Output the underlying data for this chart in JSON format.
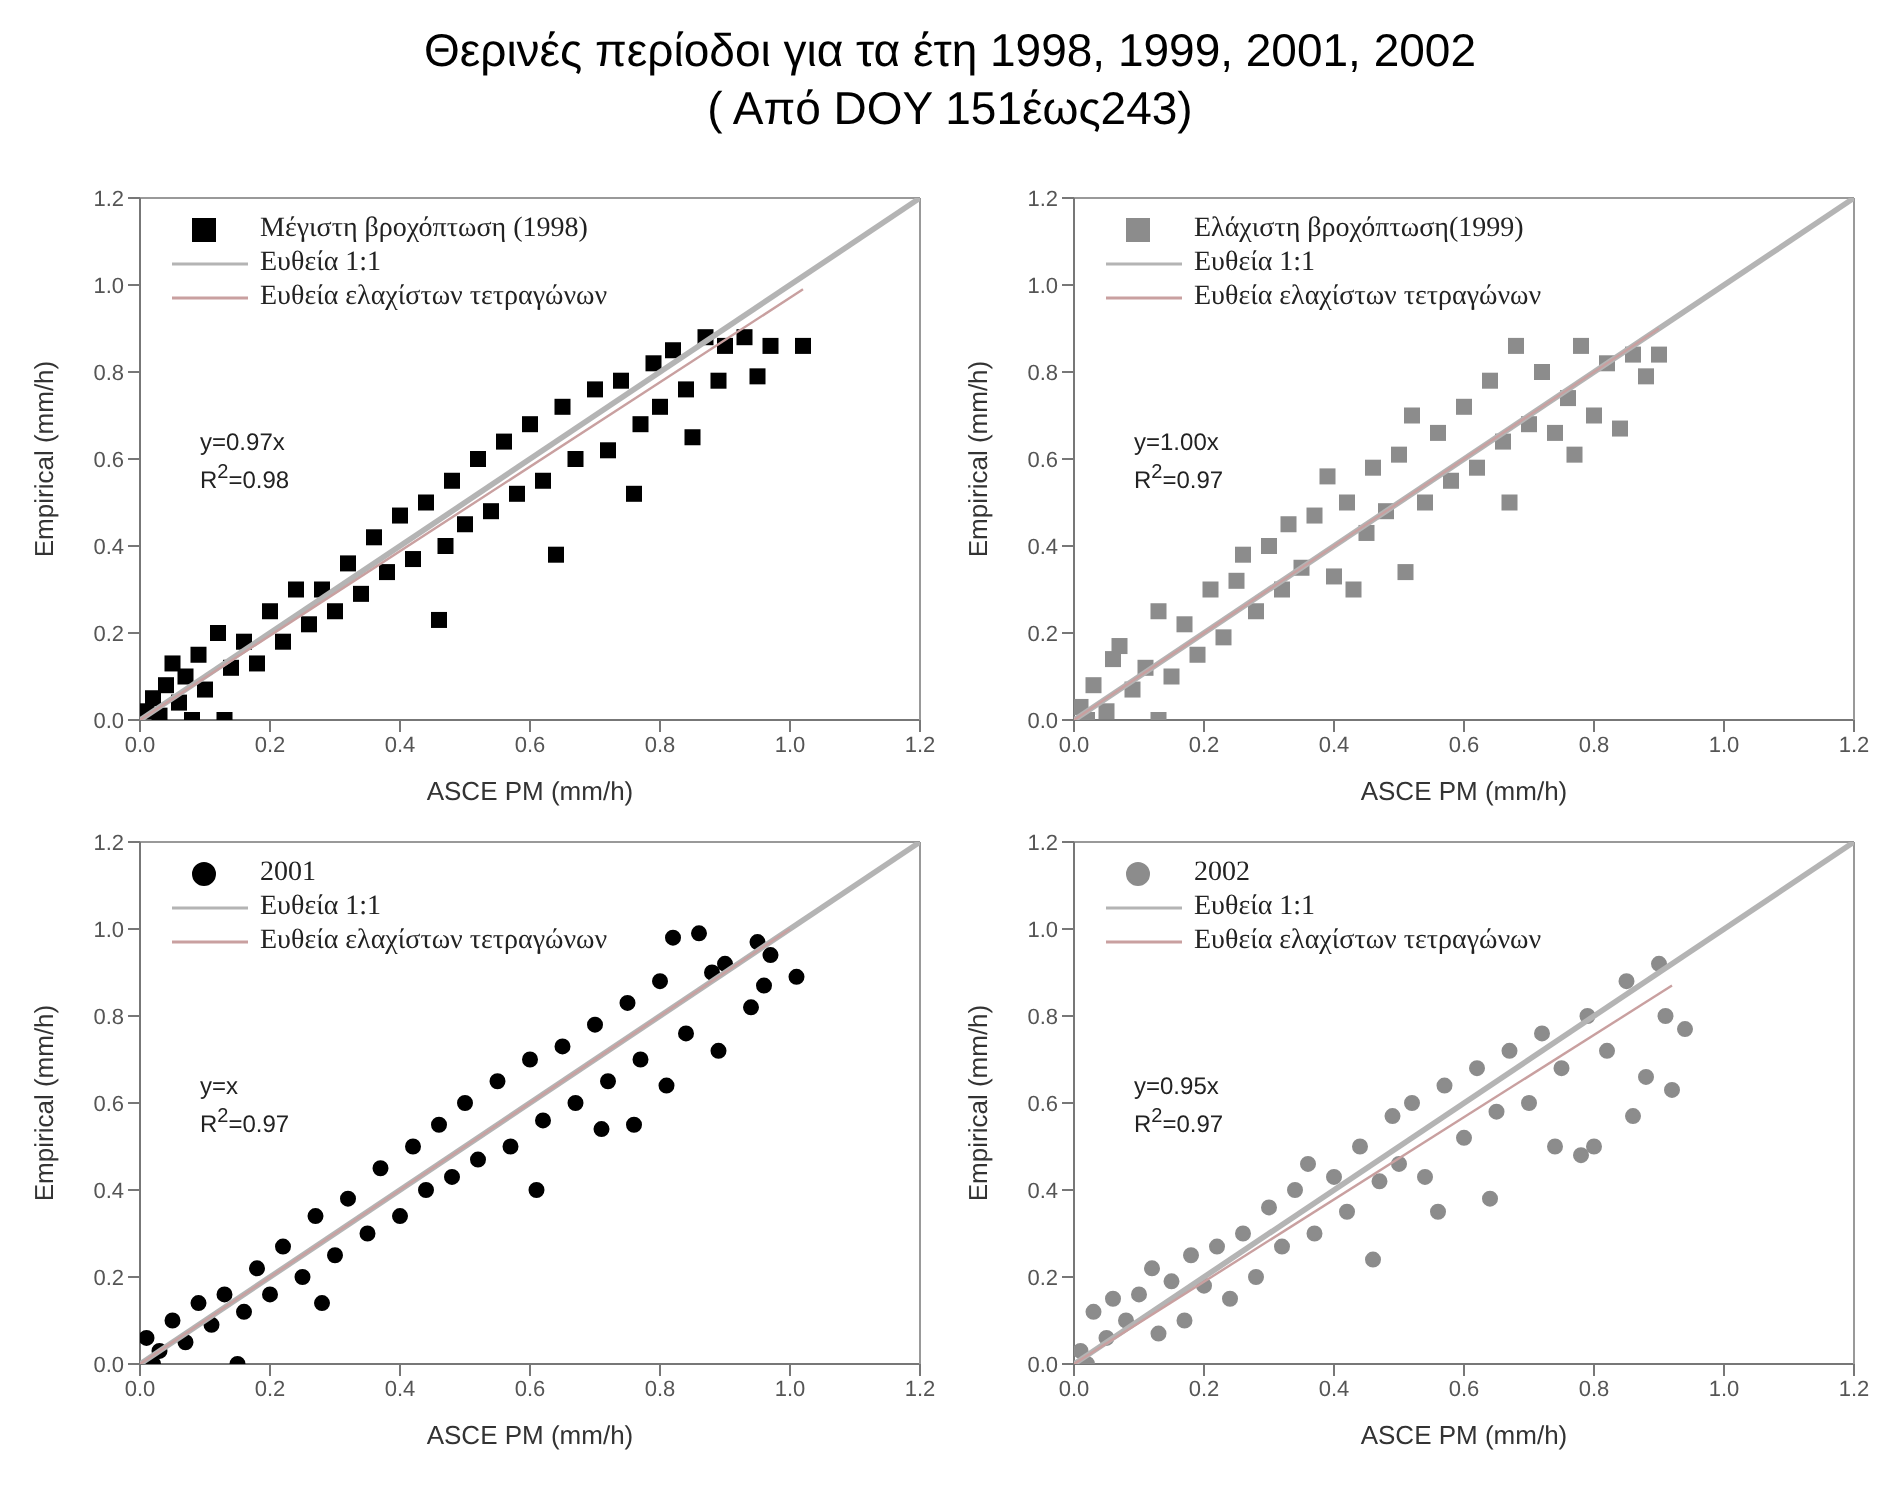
{
  "chart_data": [
    {
      "type": "scatter",
      "title": "Θερινές περίοδοι για τα έτη 1998, 1999, 2001, 2002",
      "subtitle": "( Από DOY 151έως243)",
      "xlabel": "ASCE PM (mm/h)",
      "ylabel": "Empirical (mm/h)",
      "xlim": [
        0,
        1.2
      ],
      "ylim": [
        0,
        1.2
      ],
      "xticks": [
        {
          "value": 0,
          "label": "0.0"
        },
        {
          "value": 0.2,
          "label": "0.2"
        },
        {
          "value": 0.4,
          "label": "0.4"
        },
        {
          "value": 0.6,
          "label": "0.6"
        },
        {
          "value": 0.8,
          "label": "0.8"
        },
        {
          "value": 1,
          "label": "1.0"
        },
        {
          "value": 1.2,
          "label": "1.2"
        }
      ],
      "yticks": [
        {
          "value": 0,
          "label": "0.0"
        },
        {
          "value": 0.2,
          "label": "0.2"
        },
        {
          "value": 0.4,
          "label": "0.4"
        },
        {
          "value": 0.6,
          "label": "0.6"
        },
        {
          "value": 0.8,
          "label": "0.8"
        },
        {
          "value": 1,
          "label": "1.0"
        },
        {
          "value": 1.2,
          "label": "1.2"
        }
      ],
      "grid": false,
      "legend": "top left",
      "annotations": [
        "y=0.97x",
        "R$^{2}$=0.98"
      ],
      "series": [
        {
          "name": "Μέγιστη βροχόπτωση (1998)",
          "type": "scatter",
          "marker": "square",
          "color": "#000000",
          "x": [
            0.01,
            0.02,
            0.03,
            0.04,
            0.05,
            0.06,
            0.07,
            0.09,
            0.1,
            0.12,
            0.13,
            0.08,
            0.14,
            0.16,
            0.18,
            0.2,
            0.22,
            0.24,
            0.26,
            0.28,
            0.3,
            0.32,
            0.34,
            0.36,
            0.38,
            0.4,
            0.42,
            0.44,
            0.46,
            0.47,
            0.48,
            0.5,
            0.52,
            0.54,
            0.56,
            0.58,
            0.6,
            0.62,
            0.64,
            0.65,
            0.67,
            0.7,
            0.72,
            0.74,
            0.76,
            0.77,
            0.79,
            0.8,
            0.82,
            0.84,
            0.85,
            0.87,
            0.89,
            0.9,
            0.93,
            0.95,
            0.97,
            1.02
          ],
          "values": [
            0.02,
            0.05,
            0.01,
            0.08,
            0.13,
            0.04,
            0.1,
            0.15,
            0.07,
            0.2,
            0,
            0,
            0.12,
            0.18,
            0.13,
            0.25,
            0.18,
            0.3,
            0.22,
            0.3,
            0.25,
            0.36,
            0.29,
            0.42,
            0.34,
            0.47,
            0.37,
            0.5,
            0.23,
            0.4,
            0.55,
            0.45,
            0.6,
            0.48,
            0.64,
            0.52,
            0.68,
            0.55,
            0.38,
            0.72,
            0.6,
            0.76,
            0.62,
            0.78,
            0.52,
            0.68,
            0.82,
            0.72,
            0.85,
            0.76,
            0.65,
            0.88,
            0.78,
            0.86,
            0.88,
            0.79,
            0.86,
            0.86
          ]
        },
        {
          "name": "Ευθεία 1:1",
          "type": "line",
          "color": "#b4b4b4",
          "x": [
            0,
            1.2
          ],
          "values": [
            0,
            1.2
          ]
        },
        {
          "name": "Ευθεία ελαχίστων τετραγώνων",
          "type": "line",
          "color": "#c9a0a0",
          "x": [
            0,
            1.02
          ],
          "values": [
            0,
            0.99
          ]
        }
      ]
    },
    {
      "type": "scatter",
      "xlabel": "ASCE PM (mm/h)",
      "ylabel": "Empirical (mm/h)",
      "xlim": [
        0,
        1.2
      ],
      "ylim": [
        0,
        1.2
      ],
      "xticks": [
        {
          "value": 0,
          "label": "0.0"
        },
        {
          "value": 0.2,
          "label": "0.2"
        },
        {
          "value": 0.4,
          "label": "0.4"
        },
        {
          "value": 0.6,
          "label": "0.6"
        },
        {
          "value": 0.8,
          "label": "0.8"
        },
        {
          "value": 1,
          "label": "1.0"
        },
        {
          "value": 1.2,
          "label": "1.2"
        }
      ],
      "yticks": [
        {
          "value": 0,
          "label": "0.0"
        },
        {
          "value": 0.2,
          "label": "0.2"
        },
        {
          "value": 0.4,
          "label": "0.4"
        },
        {
          "value": 0.6,
          "label": "0.6"
        },
        {
          "value": 0.8,
          "label": "0.8"
        },
        {
          "value": 1,
          "label": "1.0"
        },
        {
          "value": 1.2,
          "label": "1.2"
        }
      ],
      "grid": false,
      "legend": "top left",
      "annotations": [
        "y=1.00x",
        "R$^{2}$=0.97"
      ],
      "series": [
        {
          "name": "Ελάχιστη βροχόπτωση(1999)",
          "type": "scatter",
          "marker": "square",
          "color": "#8c8c8c",
          "x": [
            0.01,
            0.02,
            0.03,
            0.05,
            0.06,
            0.07,
            0.09,
            0.11,
            0.13,
            0.13,
            0.15,
            0.17,
            0.19,
            0.21,
            0.23,
            0.25,
            0.26,
            0.28,
            0.3,
            0.32,
            0.33,
            0.35,
            0.37,
            0.39,
            0.4,
            0.42,
            0.43,
            0.45,
            0.46,
            0.48,
            0.5,
            0.51,
            0.52,
            0.54,
            0.56,
            0.58,
            0.6,
            0.62,
            0.64,
            0.66,
            0.67,
            0.68,
            0.7,
            0.72,
            0.74,
            0.76,
            0.77,
            0.78,
            0.8,
            0.82,
            0.84,
            0.86,
            0.88,
            0.9
          ],
          "values": [
            0.03,
            0,
            0.08,
            0.02,
            0.14,
            0.17,
            0.07,
            0.12,
            0.25,
            0,
            0.1,
            0.22,
            0.15,
            0.3,
            0.19,
            0.32,
            0.38,
            0.25,
            0.4,
            0.3,
            0.45,
            0.35,
            0.47,
            0.56,
            0.33,
            0.5,
            0.3,
            0.43,
            0.58,
            0.48,
            0.61,
            0.34,
            0.7,
            0.5,
            0.66,
            0.55,
            0.72,
            0.58,
            0.78,
            0.64,
            0.5,
            0.86,
            0.68,
            0.8,
            0.66,
            0.74,
            0.61,
            0.86,
            0.7,
            0.82,
            0.67,
            0.84,
            0.79,
            0.84
          ]
        },
        {
          "name": "Ευθεία 1:1",
          "type": "line",
          "color": "#b4b4b4",
          "x": [
            0,
            1.2
          ],
          "values": [
            0,
            1.2
          ]
        },
        {
          "name": "Ευθεία ελαχίστων τετραγώνων",
          "type": "line",
          "color": "#c9a0a0",
          "x": [
            0,
            0.9
          ],
          "values": [
            0,
            0.9
          ]
        }
      ]
    },
    {
      "type": "scatter",
      "xlabel": "ASCE PM (mm/h)",
      "ylabel": "Empirical (mm/h)",
      "xlim": [
        0,
        1.2
      ],
      "ylim": [
        0,
        1.2
      ],
      "xticks": [
        {
          "value": 0,
          "label": "0.0"
        },
        {
          "value": 0.2,
          "label": "0.2"
        },
        {
          "value": 0.4,
          "label": "0.4"
        },
        {
          "value": 0.6,
          "label": "0.6"
        },
        {
          "value": 0.8,
          "label": "0.8"
        },
        {
          "value": 1,
          "label": "1.0"
        },
        {
          "value": 1.2,
          "label": "1.2"
        }
      ],
      "yticks": [
        {
          "value": 0,
          "label": "0.0"
        },
        {
          "value": 0.2,
          "label": "0.2"
        },
        {
          "value": 0.4,
          "label": "0.4"
        },
        {
          "value": 0.6,
          "label": "0.6"
        },
        {
          "value": 0.8,
          "label": "0.8"
        },
        {
          "value": 1,
          "label": "1.0"
        },
        {
          "value": 1.2,
          "label": "1.2"
        }
      ],
      "grid": false,
      "legend": "top left",
      "annotations": [
        "y=x",
        "R$^{2}$=0.97"
      ],
      "series": [
        {
          "name": "2001",
          "type": "scatter",
          "marker": "circle",
          "color": "#000000",
          "x": [
            0.01,
            0.02,
            0.03,
            0.05,
            0.07,
            0.09,
            0.11,
            0.13,
            0.15,
            0.16,
            0.18,
            0.2,
            0.22,
            0.25,
            0.27,
            0.28,
            0.3,
            0.32,
            0.35,
            0.37,
            0.4,
            0.42,
            0.44,
            0.46,
            0.48,
            0.5,
            0.52,
            0.55,
            0.57,
            0.6,
            0.61,
            0.62,
            0.65,
            0.67,
            0.7,
            0.71,
            0.72,
            0.75,
            0.76,
            0.77,
            0.8,
            0.81,
            0.82,
            0.84,
            0.86,
            0.88,
            0.89,
            0.9,
            0.94,
            0.95,
            0.96,
            0.97,
            1.01
          ],
          "values": [
            0.06,
            0,
            0.03,
            0.1,
            0.05,
            0.14,
            0.09,
            0.16,
            0,
            0.12,
            0.22,
            0.16,
            0.27,
            0.2,
            0.34,
            0.14,
            0.25,
            0.38,
            0.3,
            0.45,
            0.34,
            0.5,
            0.4,
            0.55,
            0.43,
            0.6,
            0.47,
            0.65,
            0.5,
            0.7,
            0.4,
            0.56,
            0.73,
            0.6,
            0.78,
            0.54,
            0.65,
            0.83,
            0.55,
            0.7,
            0.88,
            0.64,
            0.98,
            0.76,
            0.99,
            0.9,
            0.72,
            0.92,
            0.82,
            0.97,
            0.87,
            0.94,
            0.89
          ]
        },
        {
          "name": "Ευθεία 1:1",
          "type": "line",
          "color": "#b4b4b4",
          "x": [
            0,
            1.2
          ],
          "values": [
            0,
            1.2
          ]
        },
        {
          "name": "Ευθεία ελαχίστων τετραγώνων",
          "type": "line",
          "color": "#c9a0a0",
          "x": [
            0,
            1
          ],
          "values": [
            0,
            1
          ]
        }
      ]
    },
    {
      "type": "scatter",
      "xlabel": "ASCE PM (mm/h)",
      "ylabel": "Empirical (mm/h)",
      "xlim": [
        0,
        1.2
      ],
      "ylim": [
        0,
        1.2
      ],
      "xticks": [
        {
          "value": 0,
          "label": "0.0"
        },
        {
          "value": 0.2,
          "label": "0.2"
        },
        {
          "value": 0.4,
          "label": "0.4"
        },
        {
          "value": 0.6,
          "label": "0.6"
        },
        {
          "value": 0.8,
          "label": "0.8"
        },
        {
          "value": 1,
          "label": "1.0"
        },
        {
          "value": 1.2,
          "label": "1.2"
        }
      ],
      "yticks": [
        {
          "value": 0,
          "label": "0.0"
        },
        {
          "value": 0.2,
          "label": "0.2"
        },
        {
          "value": 0.4,
          "label": "0.4"
        },
        {
          "value": 0.6,
          "label": "0.6"
        },
        {
          "value": 0.8,
          "label": "0.8"
        },
        {
          "value": 1,
          "label": "1.0"
        },
        {
          "value": 1.2,
          "label": "1.2"
        }
      ],
      "grid": false,
      "legend": "top left",
      "annotations": [
        "y=0.95x",
        "R$^{2}$=0.97"
      ],
      "series": [
        {
          "name": "2002",
          "type": "scatter",
          "marker": "circle",
          "color": "#8c8c8c",
          "x": [
            0.01,
            0.02,
            0.03,
            0.05,
            0.06,
            0.08,
            0.1,
            0.12,
            0.13,
            0.15,
            0.17,
            0.18,
            0.2,
            0.22,
            0.24,
            0.26,
            0.28,
            0.3,
            0.32,
            0.34,
            0.36,
            0.37,
            0.4,
            0.42,
            0.44,
            0.46,
            0.47,
            0.49,
            0.5,
            0.52,
            0.54,
            0.56,
            0.57,
            0.6,
            0.62,
            0.64,
            0.65,
            0.67,
            0.7,
            0.72,
            0.74,
            0.75,
            0.78,
            0.79,
            0.8,
            0.82,
            0.85,
            0.86,
            0.88,
            0.9,
            0.91,
            0.92,
            0.94
          ],
          "values": [
            0.03,
            0,
            0.12,
            0.06,
            0.15,
            0.1,
            0.16,
            0.22,
            0.07,
            0.19,
            0.1,
            0.25,
            0.18,
            0.27,
            0.15,
            0.3,
            0.2,
            0.36,
            0.27,
            0.4,
            0.46,
            0.3,
            0.43,
            0.35,
            0.5,
            0.24,
            0.42,
            0.57,
            0.46,
            0.6,
            0.43,
            0.35,
            0.64,
            0.52,
            0.68,
            0.38,
            0.58,
            0.72,
            0.6,
            0.76,
            0.5,
            0.68,
            0.48,
            0.8,
            0.5,
            0.72,
            0.88,
            0.57,
            0.66,
            0.92,
            0.8,
            0.63,
            0.77
          ]
        },
        {
          "name": "Ευθεία 1:1",
          "type": "line",
          "color": "#b4b4b4",
          "x": [
            0,
            1.2
          ],
          "values": [
            0,
            1.2
          ]
        },
        {
          "name": "Ευθεία ελαχίστων τετραγώνων",
          "type": "line",
          "color": "#c9a0a0",
          "x": [
            0,
            0.92
          ],
          "values": [
            0,
            0.87
          ]
        }
      ]
    }
  ]
}
